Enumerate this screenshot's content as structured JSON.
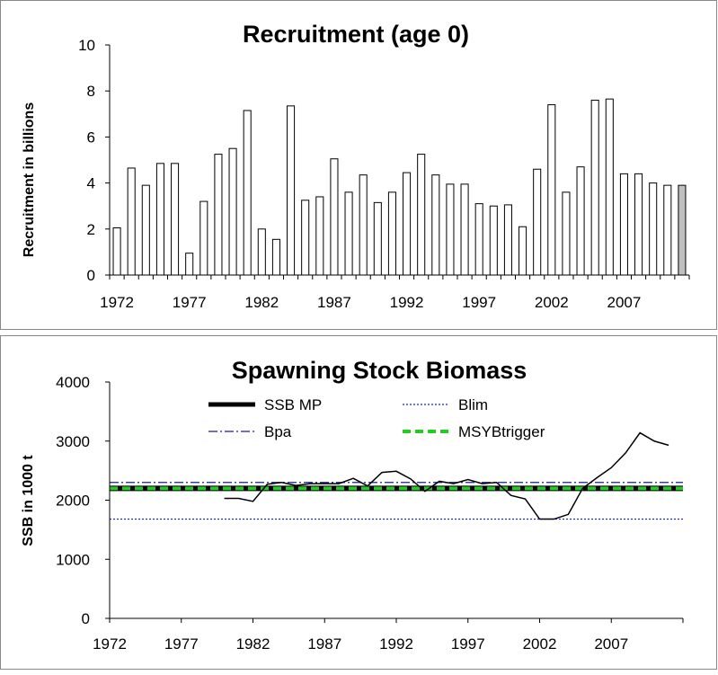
{
  "chart_data": [
    {
      "type": "bar",
      "title": "Recruitment (age 0)",
      "xlabel": "",
      "ylabel": "Recruitment in billions",
      "ylim": [
        0,
        10
      ],
      "yticks": [
        "0",
        "2",
        "4",
        "6",
        "8",
        "10"
      ],
      "xtick_labels": [
        "1972",
        "1977",
        "1982",
        "1987",
        "1992",
        "1997",
        "2002",
        "2007"
      ],
      "categories": [
        1972,
        1973,
        1974,
        1975,
        1976,
        1977,
        1978,
        1979,
        1980,
        1981,
        1982,
        1983,
        1984,
        1985,
        1986,
        1987,
        1988,
        1989,
        1990,
        1991,
        1992,
        1993,
        1994,
        1995,
        1996,
        1997,
        1998,
        1999,
        2000,
        2001,
        2002,
        2003,
        2004,
        2005,
        2006,
        2007,
        2008,
        2009,
        2010,
        2011
      ],
      "values": [
        2.05,
        4.65,
        3.9,
        4.85,
        4.85,
        0.95,
        3.2,
        5.25,
        5.5,
        7.15,
        2.0,
        1.55,
        7.35,
        3.25,
        3.4,
        5.05,
        3.6,
        4.35,
        3.15,
        3.6,
        4.45,
        5.25,
        4.35,
        3.95,
        3.95,
        3.1,
        3.0,
        3.05,
        2.1,
        4.6,
        7.4,
        3.6,
        4.7,
        7.6,
        7.65,
        4.4,
        4.4,
        4.0,
        3.9,
        3.9
      ],
      "bar_fill": "#ffffff",
      "last_bar_fill": "#c0c0c0",
      "bar_stroke": "#000000"
    },
    {
      "type": "line",
      "title": "Spawning Stock Biomass",
      "xlabel": "",
      "ylabel": "SSB in 1000 t",
      "ylim": [
        0,
        4000
      ],
      "xlim": [
        1972,
        2012
      ],
      "yticks": [
        "0",
        "1000",
        "2000",
        "3000",
        "4000"
      ],
      "xtick_labels": [
        "1972",
        "1977",
        "1982",
        "1987",
        "1992",
        "1997",
        "2002",
        "2007"
      ],
      "legend_position": "top",
      "series": [
        {
          "name": "SSB MP",
          "x": [
            1980,
            1981,
            1982,
            1983,
            1984,
            1985,
            1986,
            1987,
            1988,
            1989,
            1990,
            1991,
            1992,
            1993,
            1994,
            1995,
            1996,
            1997,
            1998,
            1999,
            2000,
            2001,
            2002,
            2003,
            2004,
            2005,
            2006,
            2007,
            2008,
            2009,
            2010,
            2011
          ],
          "y": [
            2030,
            2030,
            1980,
            2270,
            2300,
            2250,
            2280,
            2280,
            2280,
            2370,
            2240,
            2470,
            2490,
            2360,
            2150,
            2320,
            2280,
            2350,
            2280,
            2300,
            2080,
            2020,
            1680,
            1680,
            1760,
            2200,
            2380,
            2550,
            2800,
            3140,
            3000,
            2930
          ],
          "color": "#000000"
        },
        {
          "name": "Blim",
          "y": 1680,
          "color": "#1a1aff",
          "style": "dotted"
        },
        {
          "name": "Bpa",
          "y": 2300,
          "color": "#1a1a99",
          "style": "dash-dot"
        },
        {
          "name": "MSYBtrigger",
          "y": 2200,
          "color": "#22cc22",
          "style": "dashed"
        }
      ]
    }
  ]
}
